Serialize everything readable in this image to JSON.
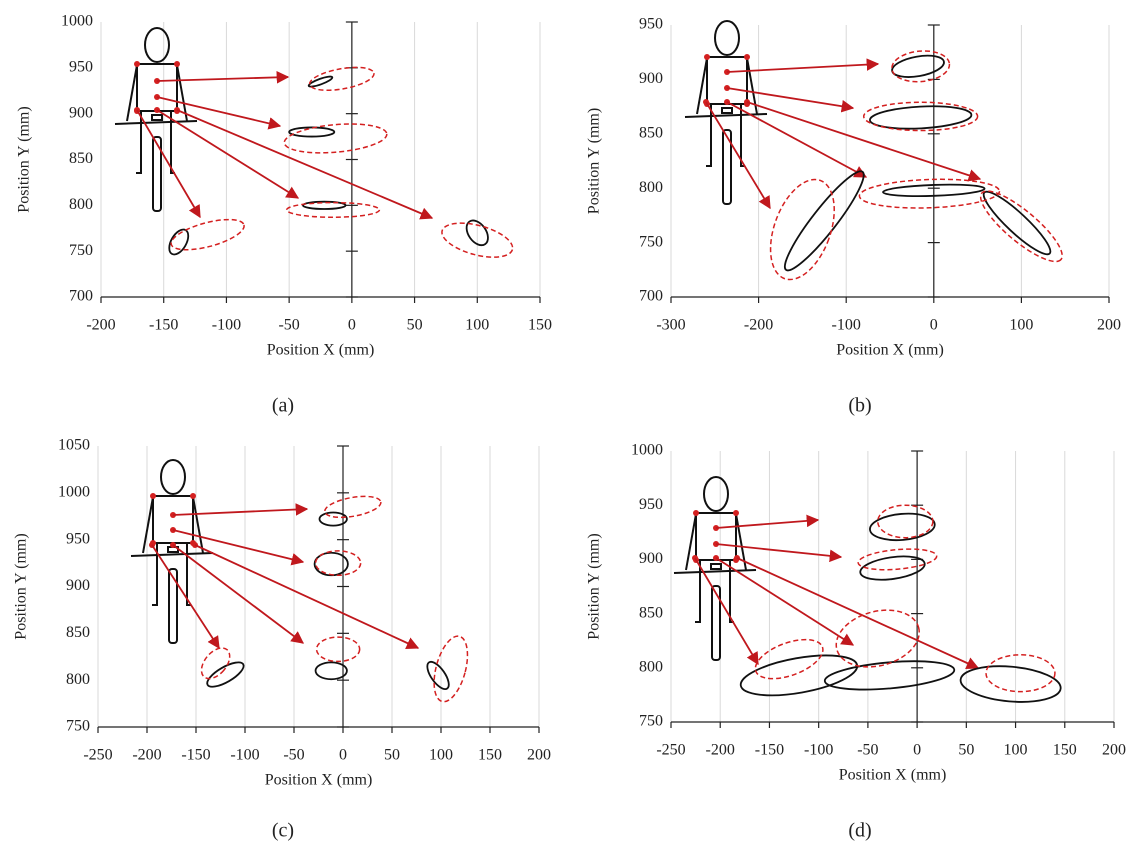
{
  "chart_data": [
    {
      "type": "ellipse",
      "caption": "(a)",
      "xlabel": "Position X (mm)",
      "ylabel": "Position Y (mm)",
      "xlim": [
        -200,
        150
      ],
      "ylim": [
        700,
        1000
      ],
      "xticks": [
        -200,
        -150,
        -100,
        -50,
        0,
        50,
        100,
        150
      ],
      "yticks": [
        700,
        750,
        800,
        850,
        900,
        950,
        1000
      ],
      "grid": true,
      "series": [
        {
          "color": "#111111",
          "dash": false,
          "x": [
            -25,
            -32,
            -22,
            -138,
            100
          ],
          "y": [
            935,
            880,
            800,
            760,
            770
          ],
          "rx": [
            10,
            18,
            17,
            6,
            7
          ],
          "ry": [
            3,
            5,
            4,
            15,
            15
          ],
          "angle": [
            -20,
            0,
            0,
            30,
            -35
          ]
        },
        {
          "color": "#d42020",
          "dash": true,
          "x": [
            -8,
            -13,
            -15,
            -115,
            100
          ],
          "y": [
            938,
            873,
            795,
            768,
            762
          ],
          "rx": [
            26,
            41,
            37,
            30,
            29
          ],
          "ry": [
            11,
            15,
            8,
            13,
            16
          ],
          "angle": [
            -10,
            -5,
            0,
            -15,
            15
          ]
        }
      ]
    },
    {
      "type": "ellipse",
      "caption": "(b)",
      "xlabel": "Position X (mm)",
      "ylabel": "Position Y (mm)",
      "xlim": [
        -300,
        200
      ],
      "ylim": [
        700,
        950
      ],
      "xticks": [
        -300,
        -200,
        -100,
        0,
        100,
        200
      ],
      "yticks": [
        700,
        750,
        800,
        850,
        900,
        950
      ],
      "grid": true,
      "series": [
        {
          "color": "#111111",
          "dash": false,
          "x": [
            -18,
            -15,
            0,
            -125,
            95
          ],
          "y": [
            912,
            865,
            798,
            770,
            768
          ],
          "rx": [
            30,
            58,
            58,
            71,
            51
          ],
          "ry": [
            9,
            10,
            5,
            11,
            9
          ],
          "angle": [
            -10,
            -3,
            -2,
            -52,
            43
          ]
        },
        {
          "color": "#d42020",
          "dash": true,
          "x": [
            -15,
            -15,
            -5,
            -150,
            100
          ],
          "y": [
            912,
            866,
            795,
            762,
            765
          ],
          "rx": [
            33,
            65,
            80,
            32,
            59
          ],
          "ry": [
            14,
            13,
            13,
            48,
            14
          ],
          "angle": [
            -5,
            0,
            -2,
            20,
            40
          ]
        }
      ]
    },
    {
      "type": "ellipse",
      "caption": "(c)",
      "xlabel": "Position X (mm)",
      "ylabel": "Position Y (mm)",
      "xlim": [
        -250,
        200
      ],
      "ylim": [
        750,
        1050
      ],
      "xticks": [
        -250,
        -200,
        -150,
        -100,
        -50,
        0,
        50,
        100,
        150,
        200
      ],
      "yticks": [
        750,
        800,
        850,
        900,
        950,
        1000,
        1050
      ],
      "grid": true,
      "series": [
        {
          "color": "#111111",
          "dash": false,
          "x": [
            -10,
            -12,
            -12,
            -120,
            97
          ],
          "y": [
            972,
            924,
            810,
            806,
            805
          ],
          "rx": [
            14,
            17,
            16,
            21,
            7
          ],
          "ry": [
            7,
            12,
            9,
            8,
            17
          ],
          "angle": [
            0,
            0,
            0,
            -30,
            -35
          ]
        },
        {
          "color": "#d42020",
          "dash": true,
          "x": [
            10,
            -5,
            -5,
            -130,
            110
          ],
          "y": [
            985,
            925,
            833,
            818,
            812
          ],
          "rx": [
            29,
            23,
            22,
            11,
            15
          ],
          "ry": [
            10,
            13,
            13,
            19,
            36
          ],
          "angle": [
            -10,
            0,
            0,
            40,
            15
          ]
        }
      ]
    },
    {
      "type": "ellipse",
      "caption": "(d)",
      "xlabel": "Position X (mm)",
      "ylabel": "Position Y (mm)",
      "xlim": [
        -250,
        200
      ],
      "ylim": [
        750,
        1000
      ],
      "xticks": [
        -250,
        -200,
        -150,
        -100,
        -50,
        0,
        50,
        100,
        150,
        200
      ],
      "yticks": [
        750,
        800,
        850,
        900,
        950,
        1000
      ],
      "grid": true,
      "series": [
        {
          "color": "#111111",
          "dash": false,
          "x": [
            -15,
            -25,
            -120,
            -28,
            95
          ],
          "y": [
            930,
            892,
            793,
            793,
            785
          ],
          "rx": [
            33,
            33,
            60,
            66,
            51
          ],
          "ry": [
            12,
            10,
            16,
            12,
            16
          ],
          "angle": [
            -5,
            -8,
            -10,
            -5,
            5
          ]
        },
        {
          "color": "#d42020",
          "dash": true,
          "x": [
            -12,
            -20,
            -130,
            -40,
            105
          ],
          "y": [
            935,
            900,
            808,
            827,
            795
          ],
          "rx": [
            28,
            40,
            36,
            43,
            35
          ],
          "ry": [
            15,
            9,
            15,
            25,
            17
          ],
          "angle": [
            0,
            -5,
            -20,
            -15,
            0
          ]
        }
      ]
    }
  ]
}
